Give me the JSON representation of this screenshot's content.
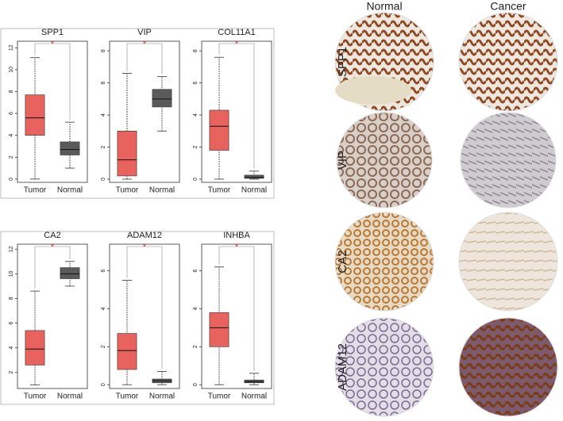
{
  "chart_data": [
    {
      "type": "box",
      "title": "SPP1",
      "categories": [
        "Tumor",
        "Normal"
      ],
      "annotation": "*",
      "ylim": [
        -0.3,
        12.6
      ],
      "yticks": [
        0,
        2,
        4,
        6,
        8,
        10,
        12
      ],
      "boxes": [
        {
          "color": "#e8625e",
          "min": 0,
          "q1": 4,
          "median": 5.6,
          "q3": 7.7,
          "max": 11.1
        },
        {
          "color": "#5a5a5a",
          "min": 1,
          "q1": 2.2,
          "median": 2.7,
          "q3": 3.4,
          "max": 5.2
        }
      ]
    },
    {
      "type": "box",
      "title": "VIP",
      "categories": [
        "Tumor",
        "Normal"
      ],
      "annotation": "*",
      "ylim": [
        -0.2,
        8.6
      ],
      "yticks": [
        0,
        2,
        4,
        6,
        8
      ],
      "boxes": [
        {
          "color": "#e8625e",
          "min": 0,
          "q1": 0.2,
          "median": 1.2,
          "q3": 3,
          "max": 6.6
        },
        {
          "color": "#5a5a5a",
          "min": 3,
          "q1": 4.5,
          "median": 5,
          "q3": 5.6,
          "max": 6.4
        }
      ]
    },
    {
      "type": "box",
      "title": "COL11A1",
      "categories": [
        "Tumor",
        "Normal"
      ],
      "annotation": "*",
      "ylim": [
        -0.2,
        8.6
      ],
      "yticks": [
        0,
        2,
        4,
        6,
        8
      ],
      "boxes": [
        {
          "color": "#e8625e",
          "min": 0,
          "q1": 1.8,
          "median": 3.3,
          "q3": 4.3,
          "max": 7.6
        },
        {
          "color": "#5a5a5a",
          "min": 0,
          "q1": 0.05,
          "median": 0.1,
          "q3": 0.25,
          "max": 0.5
        }
      ]
    },
    {
      "type": "box",
      "title": "CA2",
      "categories": [
        "Tumor",
        "Normal"
      ],
      "annotation": "*",
      "ylim": [
        0.7,
        12.4
      ],
      "yticks": [
        2,
        4,
        6,
        8,
        10,
        12
      ],
      "boxes": [
        {
          "color": "#e8625e",
          "min": 1,
          "q1": 2.6,
          "median": 3.9,
          "q3": 5.4,
          "max": 8.6
        },
        {
          "color": "#5a5a5a",
          "min": 9,
          "q1": 9.6,
          "median": 10,
          "q3": 10.5,
          "max": 11
        }
      ]
    },
    {
      "type": "box",
      "title": "ADAM12",
      "categories": [
        "Tumor",
        "Normal"
      ],
      "annotation": "*",
      "ylim": [
        -0.2,
        7.4
      ],
      "yticks": [
        0,
        2,
        4,
        6
      ],
      "boxes": [
        {
          "color": "#e8625e",
          "min": 0,
          "q1": 0.8,
          "median": 1.8,
          "q3": 2.7,
          "max": 5.5
        },
        {
          "color": "#5a5a5a",
          "min": 0,
          "q1": 0.1,
          "median": 0.2,
          "q3": 0.3,
          "max": 0.7
        }
      ]
    },
    {
      "type": "box",
      "title": "INHBA",
      "categories": [
        "Tumor",
        "Normal"
      ],
      "annotation": "*",
      "ylim": [
        -0.2,
        7.4
      ],
      "yticks": [
        0,
        2,
        4,
        6
      ],
      "boxes": [
        {
          "color": "#e8625e",
          "min": 0,
          "q1": 2,
          "median": 3,
          "q3": 3.8,
          "max": 6.2
        },
        {
          "color": "#5a5a5a",
          "min": 0,
          "q1": 0.1,
          "median": 0.15,
          "q3": 0.25,
          "max": 0.6
        }
      ]
    }
  ],
  "tissue_panel": {
    "columns": [
      "Normal",
      "Cancer"
    ],
    "rows": [
      "SPP1",
      "VIP",
      "CA2",
      "ADAM12"
    ]
  }
}
